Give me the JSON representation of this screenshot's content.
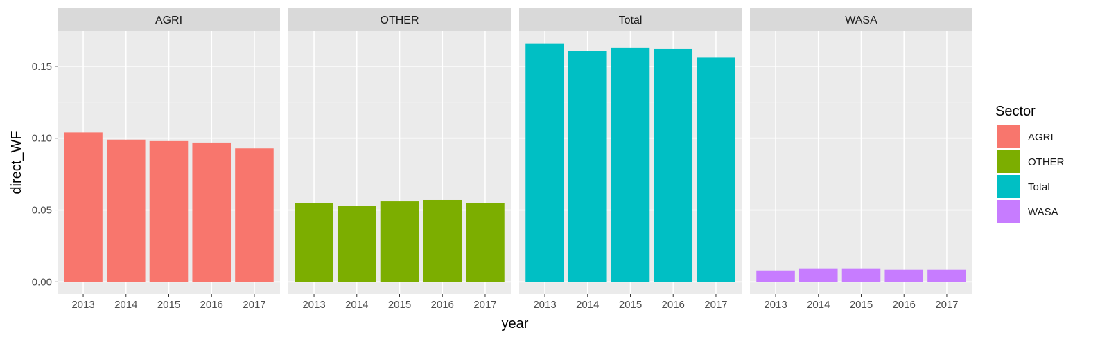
{
  "chart_data": {
    "type": "bar",
    "facets": [
      "AGRI",
      "OTHER",
      "Total",
      "WASA"
    ],
    "categories": [
      "2013",
      "2014",
      "2015",
      "2016",
      "2017"
    ],
    "series": [
      {
        "name": "AGRI",
        "facet": "AGRI",
        "color": "#F8766D",
        "values": [
          0.104,
          0.099,
          0.098,
          0.097,
          0.093
        ]
      },
      {
        "name": "OTHER",
        "facet": "OTHER",
        "color": "#7CAE00",
        "values": [
          0.055,
          0.053,
          0.056,
          0.057,
          0.055
        ]
      },
      {
        "name": "Total",
        "facet": "Total",
        "color": "#00BFC4",
        "values": [
          0.166,
          0.161,
          0.163,
          0.162,
          0.156
        ]
      },
      {
        "name": "WASA",
        "facet": "WASA",
        "color": "#C77CFF",
        "values": [
          0.008,
          0.009,
          0.009,
          0.0085,
          0.0085
        ]
      }
    ],
    "xlabel": "year",
    "ylabel": "direct_WF",
    "yticks": [
      "0.00",
      "0.05",
      "0.10",
      "0.15"
    ],
    "ylim": [
      -0.0085,
      0.1745
    ],
    "grid": true,
    "legend": {
      "title": "Sector",
      "position": "right",
      "entries": [
        "AGRI",
        "OTHER",
        "Total",
        "WASA"
      ]
    }
  }
}
